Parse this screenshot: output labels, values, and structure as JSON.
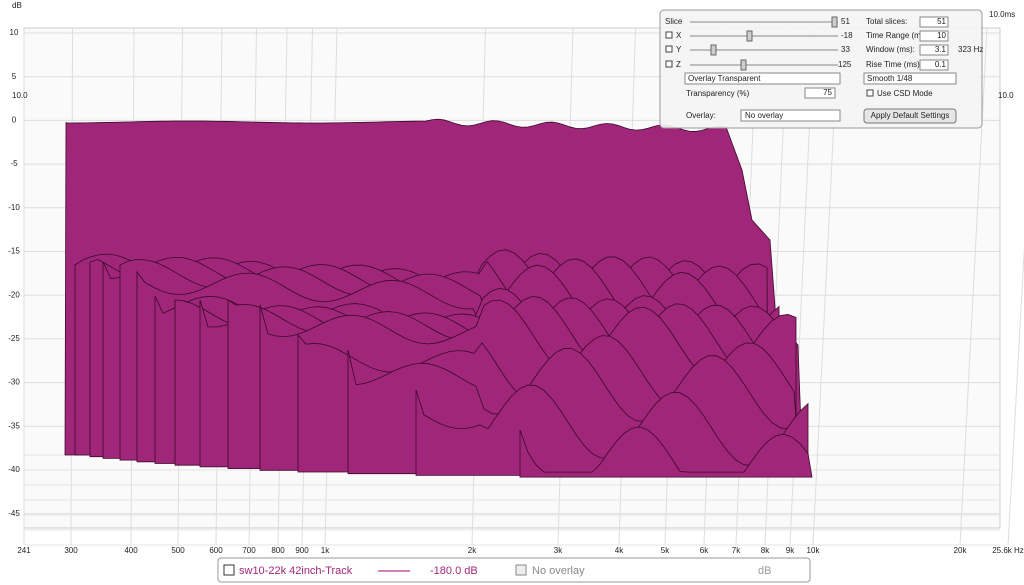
{
  "plot": {
    "y_unit": "dB",
    "yticks": [
      "10",
      "5",
      "0",
      "-5",
      "-10",
      "-15",
      "-20",
      "-25",
      "-30",
      "-35",
      "-40",
      "-45"
    ],
    "xticks": [
      "241",
      "300",
      "400",
      "500",
      "600",
      "700",
      "800",
      "900",
      "1k",
      "2k",
      "3k",
      "4k",
      "5k",
      "6k",
      "7k",
      "8k",
      "9k",
      "10k",
      "20k",
      "25.6k Hz"
    ],
    "time_label": "10.0ms",
    "depth_label_left": "10.0",
    "depth_label_right": "10.0"
  },
  "controls": {
    "slice": {
      "label": "Slice",
      "value": "51"
    },
    "x": {
      "label": "X",
      "value": "-18"
    },
    "y": {
      "label": "Y",
      "value": "33"
    },
    "z": {
      "label": "Z",
      "value": "125"
    },
    "total_slices": {
      "label": "Total slices:",
      "value": "51"
    },
    "time_range": {
      "label": "Time Range (ms):",
      "value": "10"
    },
    "window": {
      "label": "Window (ms):",
      "value": "3.1",
      "extra": "323 Hz"
    },
    "rise_time": {
      "label": "Rise Time (ms):",
      "value": "0.1"
    },
    "mode": "Overlay Transparent",
    "smoothing": "Smooth 1/48",
    "transparency": {
      "label": "Transparency (%)",
      "value": "75"
    },
    "csd": "Use CSD Mode",
    "overlay": {
      "label": "Overlay:",
      "value": "No overlay"
    },
    "button": "Apply Default Settings"
  },
  "legend": {
    "trace": "sw10-22k 42inch-Track",
    "value": "-180.0 dB",
    "overlay": "No overlay",
    "overlay_unit": "dB"
  }
}
